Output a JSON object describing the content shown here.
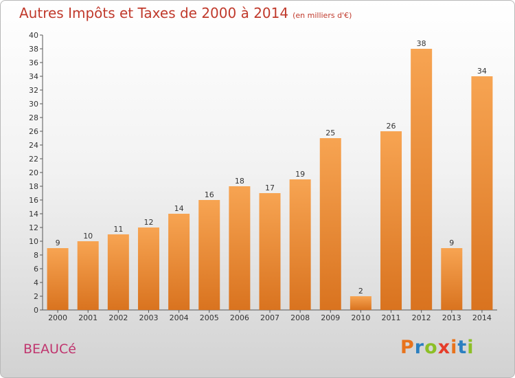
{
  "header": {
    "title": "Autres Impôts et Taxes de 2000 à 2014",
    "unit": "(en milliers d'€)"
  },
  "footer": {
    "commune": "BEAUCé",
    "brand": {
      "letters": [
        "P",
        "r",
        "o",
        "x",
        "i",
        "t",
        "i"
      ],
      "colors": [
        "#e8731c",
        "#2b7fc0",
        "#8cbf26",
        "#e63d2a",
        "#e8731c",
        "#2b7fc0",
        "#8cbf26"
      ]
    }
  },
  "chart_data": {
    "type": "bar",
    "title": "Autres Impôts et Taxes de 2000 à 2014",
    "subtitle": "(en milliers d'€)",
    "xlabel": "",
    "ylabel": "",
    "categories": [
      "2000",
      "2001",
      "2002",
      "2003",
      "2004",
      "2005",
      "2006",
      "2007",
      "2008",
      "2009",
      "2010",
      "2011",
      "2012",
      "2013",
      "2014"
    ],
    "values": [
      9,
      10,
      11,
      12,
      14,
      16,
      18,
      17,
      19,
      25,
      2,
      26,
      38,
      9,
      34
    ],
    "ylim": [
      0,
      40
    ],
    "ytick_step": 2,
    "grid": false,
    "bar_color": "#f0922e",
    "bar_color_dark": "#d8721e",
    "show_value_labels": true
  }
}
